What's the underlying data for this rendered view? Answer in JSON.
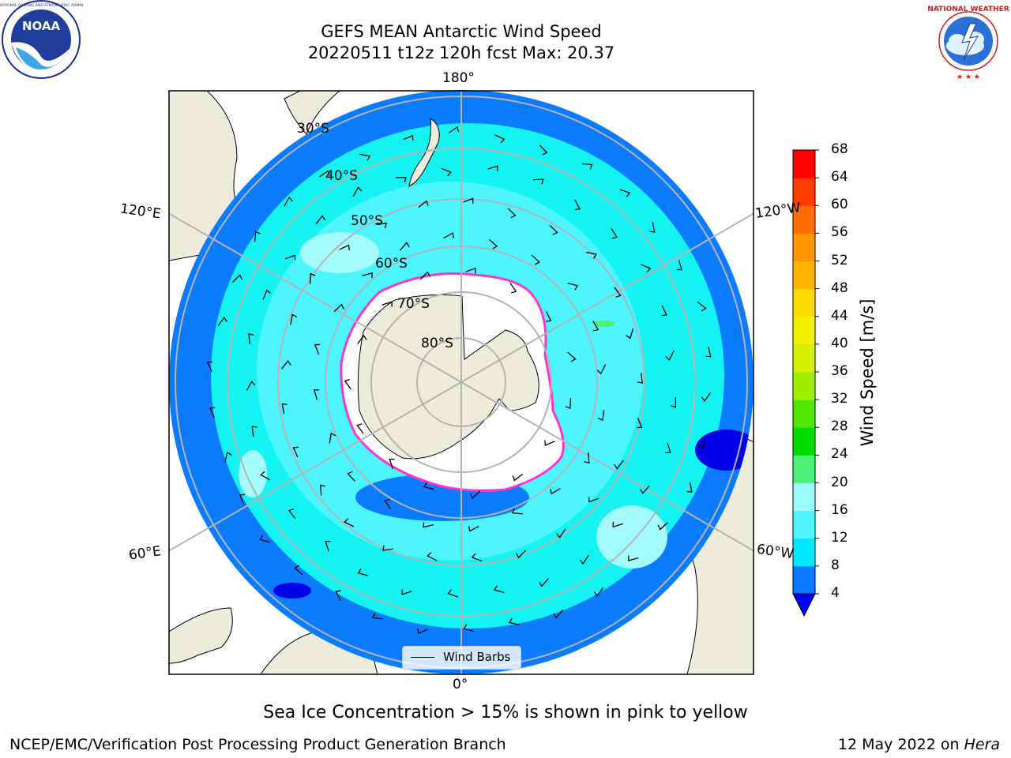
{
  "header": {
    "title_line1": "GEFS MEAN Antarctic Wind Speed",
    "title_line2": "20220511 t12z 120h fcst   Max: 20.37"
  },
  "logos": {
    "left": {
      "name": "noaa-logo",
      "text": "NOAA",
      "ring_text": "NATIONAL OCEANIC AND ATMOSPHERIC ADMINISTRATION · U.S. DEPARTMENT OF COMMERCE"
    },
    "right": {
      "name": "nws-logo",
      "ring_text": "NATIONAL WEATHER SERVICE"
    }
  },
  "map": {
    "projection": "south-polar-stereographic",
    "longitude_labels": {
      "top": "180°",
      "bottom": "0°",
      "upper_left": "120°E",
      "lower_left": "60°E",
      "upper_right": "120°W",
      "lower_right": "60°W"
    },
    "latitude_labels": [
      "30°S",
      "40°S",
      "50°S",
      "60°S",
      "70°S",
      "80°S"
    ],
    "legend": {
      "entry": "Wind Barbs"
    },
    "colors": {
      "land": "#ecebdc",
      "ocean_low": "#0b7cff",
      "ocean_mid": "#15f2f2",
      "ocean_high": "#a4fbfb",
      "ice": "#ffffff",
      "ice_edge": "#ff33cc",
      "grid": "#b4b4b4"
    }
  },
  "colorbar": {
    "label": "Wind Speed [m/s]",
    "ticks": [
      "4",
      "8",
      "12",
      "16",
      "20",
      "24",
      "28",
      "32",
      "36",
      "40",
      "44",
      "48",
      "52",
      "56",
      "60",
      "64",
      "68"
    ],
    "colors": [
      "#0000f0",
      "#0a78ff",
      "#00e8ff",
      "#4ef5ff",
      "#9afcfc",
      "#4ef07a",
      "#00dc00",
      "#50e600",
      "#a0ee00",
      "#d2f000",
      "#f0f000",
      "#ffdc00",
      "#ffb400",
      "#ff9600",
      "#ff6e00",
      "#ff3c00",
      "#ff0000"
    ]
  },
  "caption": "Sea Ice Concentration > 15% is shown in pink to yellow",
  "footer": {
    "left": "NCEP/EMC/Verification Post Processing Product Generation Branch",
    "right_date": "12 May 2022 on ",
    "right_host": "Hera"
  }
}
